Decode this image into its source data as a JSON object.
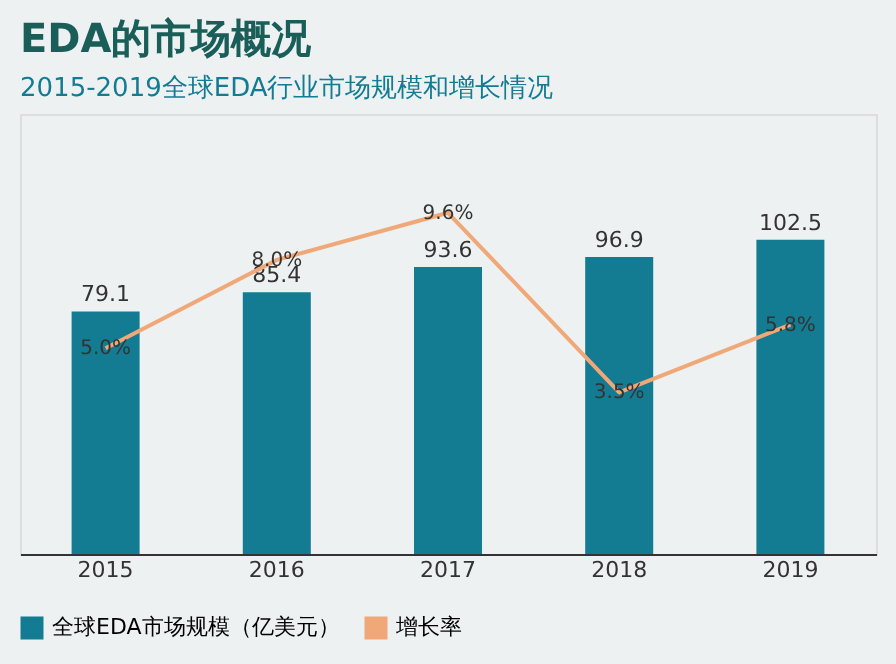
{
  "chart_data": {
    "type": "bar",
    "title": "EDA的市场概况",
    "subtitle": "2015-2019全球EDA行业市场规模和增长情况",
    "categories": [
      "2015",
      "2016",
      "2017",
      "2018",
      "2019"
    ],
    "series": [
      {
        "name": "全球EDA市场规模（亿美元）",
        "color": "#137b92",
        "values": [
          79.1,
          85.4,
          93.6,
          96.9,
          102.5
        ],
        "value_labels": [
          "79.1",
          "85.4",
          "93.6",
          "96.9",
          "102.5"
        ]
      },
      {
        "name": "增长率",
        "type": "line",
        "axis": "y2",
        "color": "#f0a878",
        "values": [
          5.0,
          8.0,
          9.6,
          3.5,
          5.8
        ],
        "value_labels": [
          "5.0%",
          "8.0%",
          "9.6%",
          "3.5%",
          "5.8%"
        ]
      }
    ],
    "legend": "bottom",
    "grid": false
  }
}
